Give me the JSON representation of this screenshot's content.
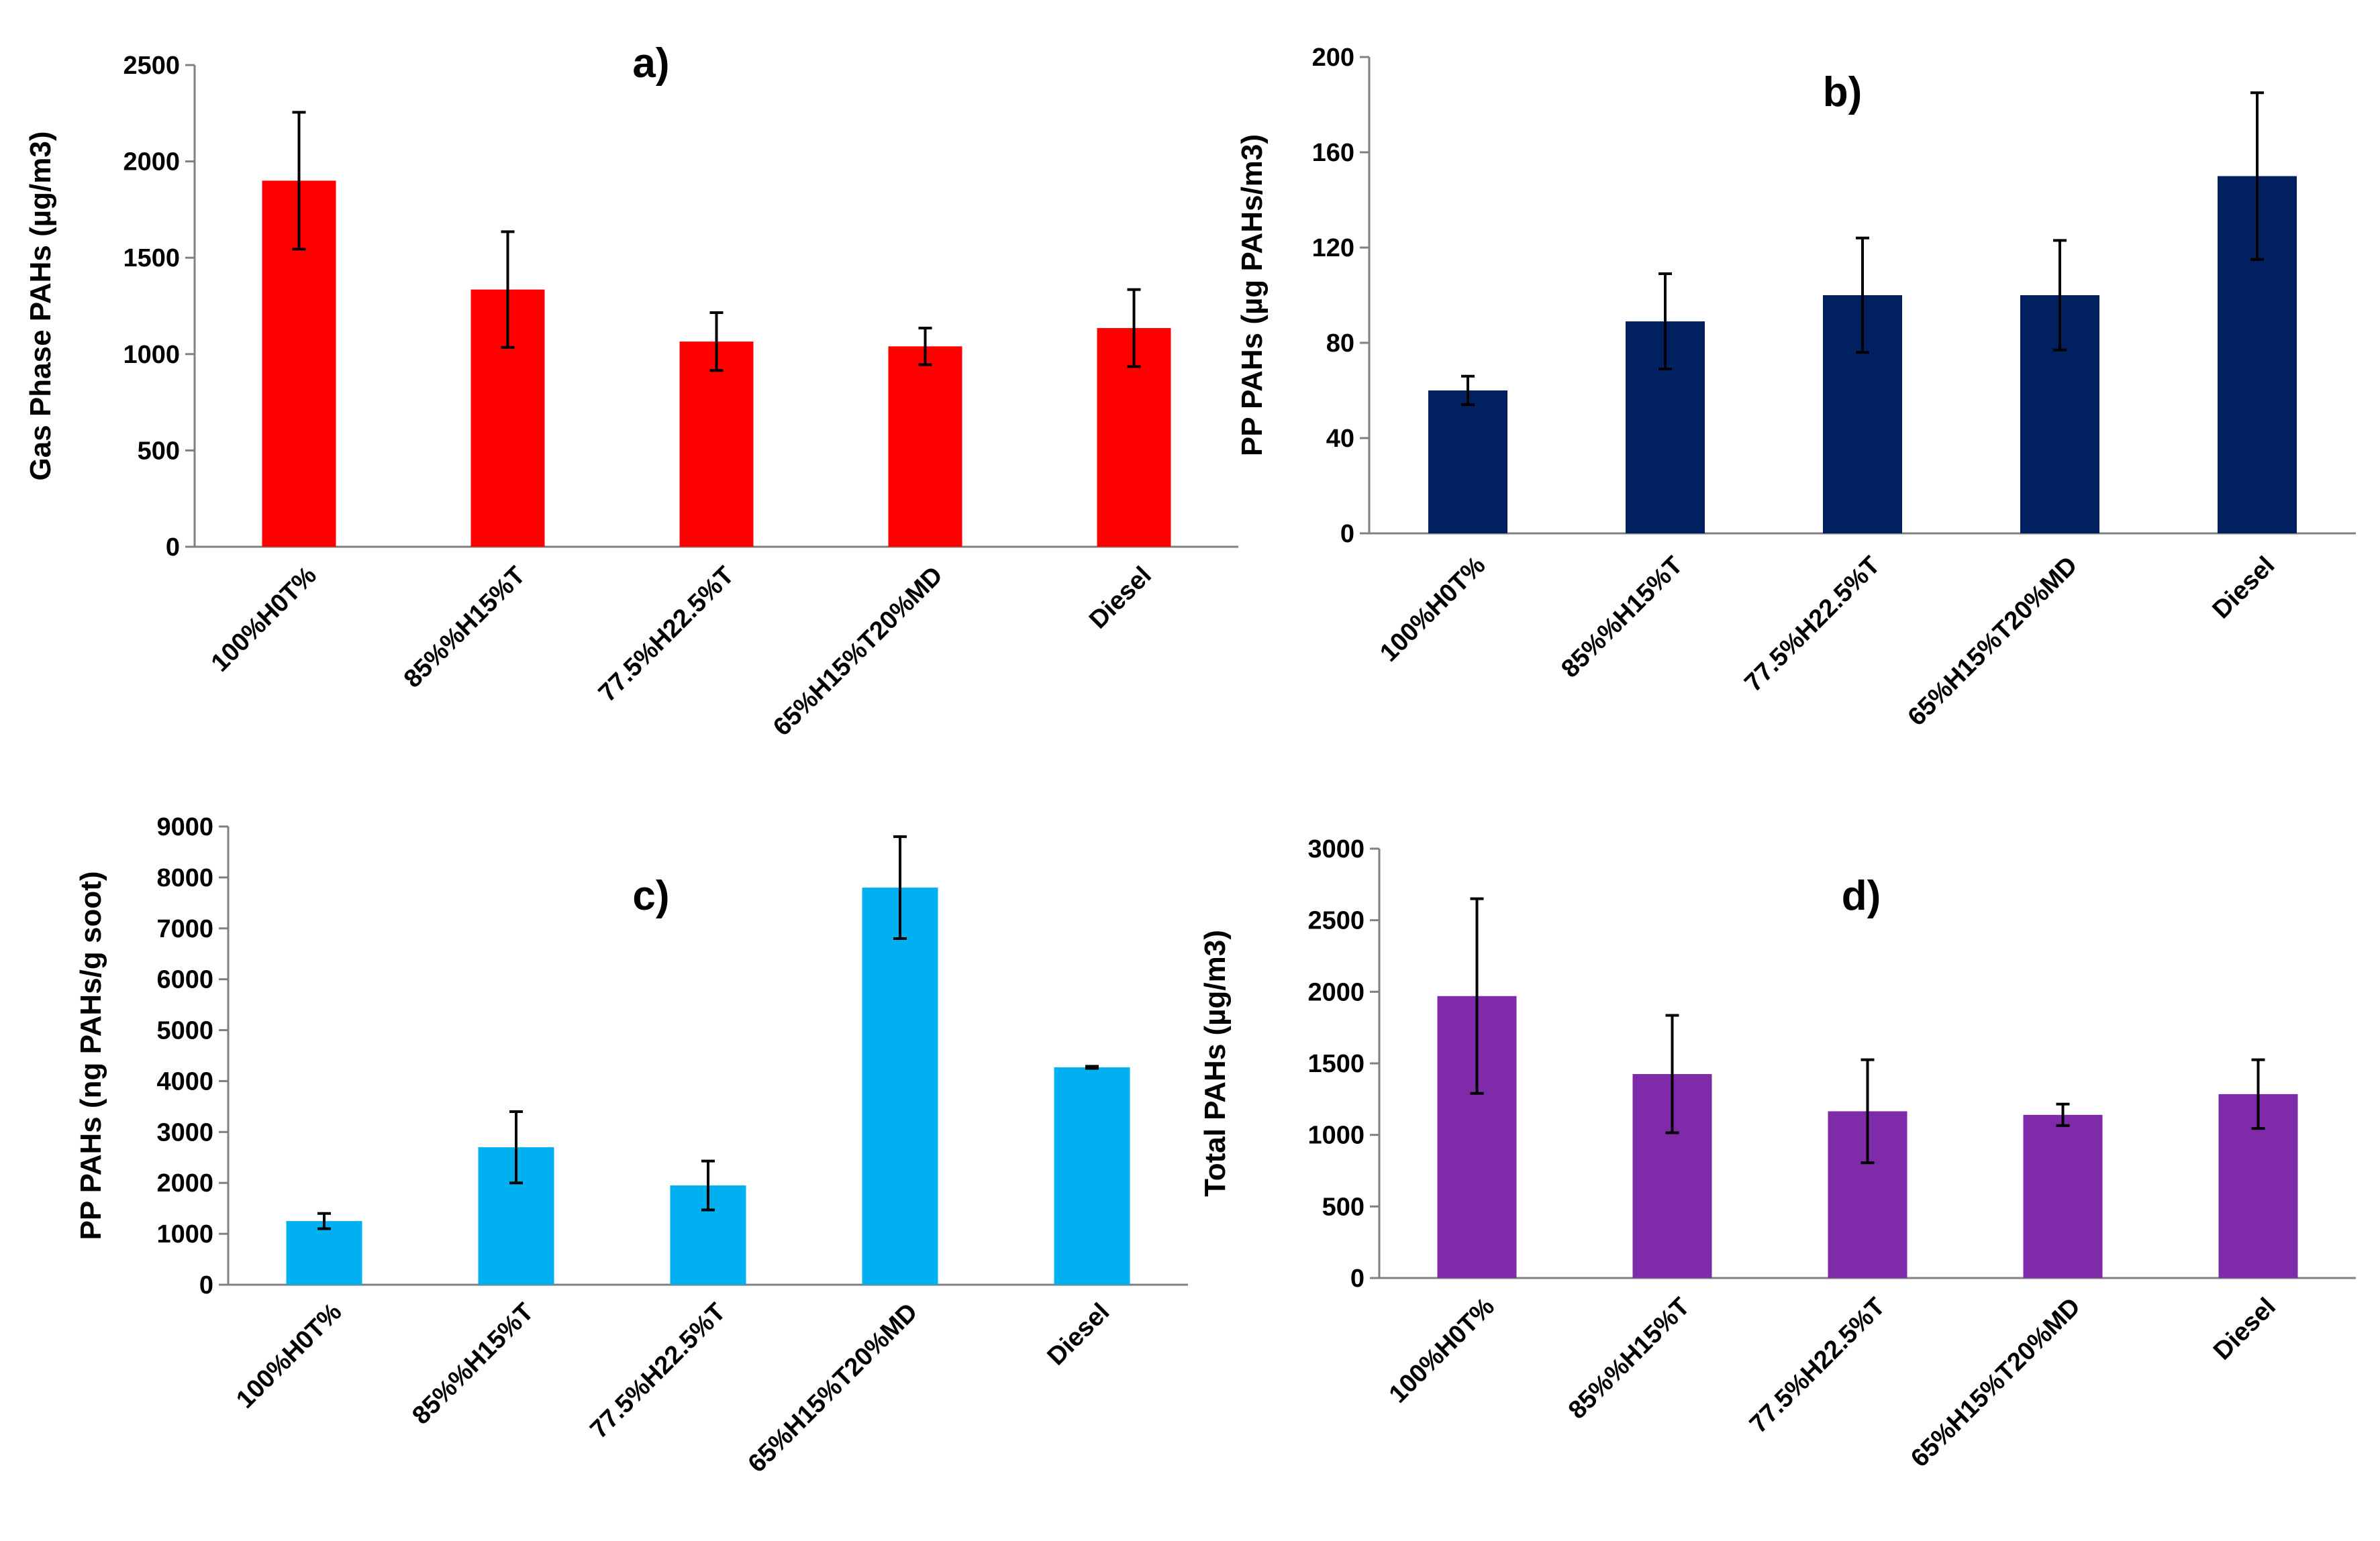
{
  "figure": {
    "description_label": ""
  },
  "chart_data": [
    {
      "id": "a",
      "type": "bar",
      "title": "a)",
      "xlabel": "",
      "ylabel": "Gas Phase PAHs (µg/m3)",
      "categories": [
        "100%H0T%",
        "85%%H15%T",
        "77.5%H22.5%T",
        "65%H15%T20%MD",
        "Diesel"
      ],
      "values": [
        1900,
        1335,
        1065,
        1040,
        1135
      ],
      "errors": [
        355,
        300,
        150,
        95,
        200
      ],
      "ylim": [
        0,
        2500
      ],
      "yticks": [
        0,
        500,
        1000,
        1500,
        2000,
        2500
      ],
      "color": "#ff0000"
    },
    {
      "id": "b",
      "type": "bar",
      "title": "b)",
      "xlabel": "",
      "ylabel": "PP PAHs (µg PAHs/m3)",
      "categories": [
        "100%H0T%",
        "85%%H15%T",
        "77.5%H22.5%T",
        "65%H15%T20%MD",
        "Diesel"
      ],
      "values": [
        60,
        89,
        100,
        100,
        150
      ],
      "errors": [
        6,
        20,
        24,
        23,
        35
      ],
      "ylim": [
        0,
        200
      ],
      "yticks": [
        0,
        40,
        80,
        120,
        160,
        200
      ],
      "color": "#002060"
    },
    {
      "id": "c",
      "type": "bar",
      "title": "c)",
      "xlabel": "",
      "ylabel": "PP PAHs (ng PAHs/g soot)",
      "categories": [
        "100%H0T%",
        "85%%H15%T",
        "77.5%H22.5%T",
        "65%H15%T20%MD",
        "Diesel"
      ],
      "values": [
        1250,
        2700,
        1950,
        7800,
        4270
      ],
      "errors": [
        150,
        700,
        480,
        1000,
        20
      ],
      "ylim": [
        0,
        9000
      ],
      "yticks": [
        0,
        1000,
        2000,
        3000,
        4000,
        5000,
        6000,
        7000,
        8000,
        9000
      ],
      "color": "#00b0f0"
    },
    {
      "id": "d",
      "type": "bar",
      "title": "d)",
      "xlabel": "",
      "ylabel": "Total PAHs (µg/m3)",
      "categories": [
        "100%H0T%",
        "85%%H15%T",
        "77.5%H22.5%T",
        "65%H15%T20%MD",
        "Diesel"
      ],
      "values": [
        1970,
        1425,
        1165,
        1140,
        1285
      ],
      "errors": [
        680,
        410,
        360,
        75,
        240
      ],
      "ylim": [
        0,
        3000
      ],
      "yticks": [
        0,
        500,
        1000,
        1500,
        2000,
        2500,
        3000
      ],
      "color": "#7f2aa8"
    }
  ]
}
